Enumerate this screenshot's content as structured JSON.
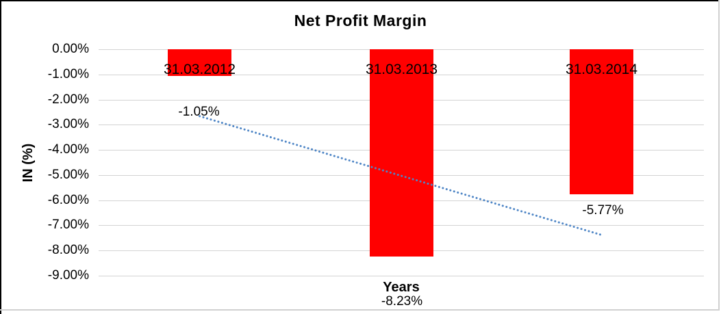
{
  "chart": {
    "title": "Net Profit Margin",
    "y_axis_title": "IN (%)",
    "x_axis_title": "Years"
  },
  "chart_data": {
    "type": "bar",
    "title": "Net Profit Margin",
    "xlabel": "Years",
    "ylabel": "IN (%)",
    "categories": [
      "31.03.2012",
      "31.03.2013",
      "31.03.2014"
    ],
    "values": [
      -1.05,
      -8.23,
      -5.77
    ],
    "data_labels": [
      "-1.05%",
      "-8.23%",
      "-5.77%"
    ],
    "series": [
      {
        "name": "Net Profit Margin",
        "values": [
          -1.05,
          -8.23,
          -5.77
        ]
      }
    ],
    "y_ticks": [
      {
        "value": 0,
        "label": "0.00%"
      },
      {
        "value": -1,
        "label": "-1.00%"
      },
      {
        "value": -2,
        "label": "-2.00%"
      },
      {
        "value": -3,
        "label": "-3.00%"
      },
      {
        "value": -4,
        "label": "-4.00%"
      },
      {
        "value": -5,
        "label": "-5.00%"
      },
      {
        "value": -6,
        "label": "-6.00%"
      },
      {
        "value": -7,
        "label": "-7.00%"
      },
      {
        "value": -8,
        "label": "-8.00%"
      },
      {
        "value": -9,
        "label": "-9.00%"
      }
    ],
    "ylim": [
      0,
      -9
    ],
    "grid": true,
    "legend": "none",
    "bar_color": "#ff0000",
    "gridline_color": "#d3d3d3",
    "trendline": {
      "type": "linear",
      "style": "dotted",
      "color": "#4f86c6",
      "start_value": -2.66,
      "end_value": -7.38
    }
  }
}
